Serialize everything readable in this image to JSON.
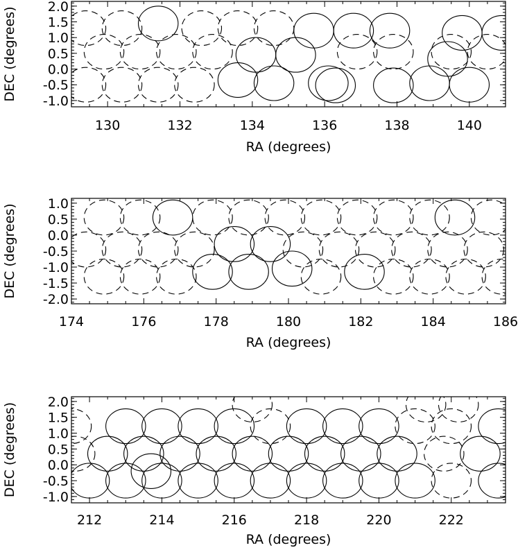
{
  "chart_data": [
    {
      "type": "scatter",
      "marker": "circle",
      "xlabel": "RA (degrees)",
      "ylabel": "DEC (degrees)",
      "xlim": [
        129.0,
        141.0
      ],
      "ylim": [
        -1.2,
        2.15
      ],
      "xticks": [
        130,
        132,
        134,
        136,
        138,
        140
      ],
      "yticks": [
        -1.0,
        -0.5,
        0.0,
        0.5,
        1.0,
        1.5,
        2.0
      ],
      "xtick_labels": [
        "130",
        "132",
        "134",
        "136",
        "138",
        "140"
      ],
      "ytick_labels": [
        "-1.0",
        "-0.5",
        "0.0",
        "0.5",
        "1.0",
        "1.5",
        "2.0"
      ],
      "radius_deg": 0.55,
      "series": [
        {
          "style": "solid",
          "points": [
            [
              131.4,
              1.45
            ],
            [
              135.7,
              1.22
            ],
            [
              136.8,
              1.22
            ],
            [
              137.8,
              1.22
            ],
            [
              139.8,
              1.15
            ],
            [
              140.9,
              1.15
            ],
            [
              134.1,
              0.45
            ],
            [
              135.2,
              0.45
            ],
            [
              139.4,
              0.32
            ],
            [
              133.6,
              -0.35
            ],
            [
              134.6,
              -0.45
            ],
            [
              136.3,
              -0.52
            ],
            [
              136.1,
              -0.45
            ],
            [
              137.9,
              -0.52
            ],
            [
              138.9,
              -0.45
            ],
            [
              140.0,
              -0.5
            ]
          ]
        },
        {
          "style": "dashed",
          "points": [
            [
              129.4,
              1.3
            ],
            [
              130.4,
              1.3
            ],
            [
              132.6,
              1.3
            ],
            [
              133.6,
              1.3
            ],
            [
              134.6,
              1.3
            ],
            [
              129.9,
              0.55
            ],
            [
              130.9,
              0.55
            ],
            [
              131.9,
              0.55
            ],
            [
              132.9,
              0.55
            ],
            [
              129.4,
              -0.5
            ],
            [
              130.4,
              -0.5
            ],
            [
              131.4,
              -0.5
            ],
            [
              132.4,
              -0.5
            ],
            [
              139.5,
              0.55
            ],
            [
              140.5,
              0.55
            ],
            [
              136.9,
              0.55
            ],
            [
              137.9,
              0.55
            ]
          ]
        }
      ]
    },
    {
      "type": "scatter",
      "marker": "circle",
      "xlabel": "RA (degrees)",
      "ylabel": "DEC (degrees)",
      "xlim": [
        174.0,
        186.0
      ],
      "ylim": [
        -2.15,
        1.15
      ],
      "xticks": [
        174,
        176,
        178,
        180,
        182,
        184,
        186
      ],
      "yticks": [
        -2.0,
        -1.5,
        -1.0,
        -0.5,
        0.0,
        0.5,
        1.0
      ],
      "xtick_labels": [
        "174",
        "176",
        "178",
        "180",
        "182",
        "184",
        "186"
      ],
      "ytick_labels": [
        "-2.0",
        "-1.5",
        "-1.0",
        "-0.5",
        "0.0",
        "0.5",
        "1.0"
      ],
      "radius_deg": 0.55,
      "series": [
        {
          "style": "solid",
          "points": [
            [
              176.8,
              0.55
            ],
            [
              184.6,
              0.55
            ],
            [
              178.5,
              -0.28
            ],
            [
              179.5,
              -0.28
            ],
            [
              177.9,
              -1.15
            ],
            [
              178.9,
              -1.15
            ],
            [
              180.1,
              -1.05
            ],
            [
              182.1,
              -1.15
            ]
          ]
        },
        {
          "style": "dashed",
          "points": [
            [
              174.9,
              0.55
            ],
            [
              175.9,
              0.55
            ],
            [
              177.9,
              0.55
            ],
            [
              178.9,
              0.55
            ],
            [
              179.9,
              0.55
            ],
            [
              180.9,
              0.55
            ],
            [
              181.9,
              0.55
            ],
            [
              182.9,
              0.55
            ],
            [
              183.9,
              0.55
            ],
            [
              185.6,
              0.55
            ],
            [
              174.4,
              -0.45
            ],
            [
              175.4,
              -0.45
            ],
            [
              176.4,
              -0.45
            ],
            [
              177.4,
              -0.45
            ],
            [
              180.4,
              -0.45
            ],
            [
              181.4,
              -0.45
            ],
            [
              182.4,
              -0.45
            ],
            [
              183.4,
              -0.45
            ],
            [
              184.4,
              -0.45
            ],
            [
              185.4,
              -0.45
            ],
            [
              174.9,
              -1.3
            ],
            [
              175.9,
              -1.3
            ],
            [
              176.9,
              -1.3
            ],
            [
              180.9,
              -1.3
            ],
            [
              182.9,
              -1.3
            ],
            [
              183.9,
              -1.3
            ],
            [
              184.9,
              -1.3
            ],
            [
              185.9,
              -1.3
            ]
          ]
        }
      ]
    },
    {
      "type": "scatter",
      "marker": "circle",
      "xlabel": "RA (degrees)",
      "ylabel": "DEC (degrees)",
      "xlim": [
        211.5,
        223.5
      ],
      "ylim": [
        -1.2,
        2.15
      ],
      "xticks": [
        212,
        214,
        216,
        218,
        220,
        222
      ],
      "yticks": [
        -1.0,
        -0.5,
        0.0,
        0.5,
        1.0,
        1.5,
        2.0
      ],
      "xtick_labels": [
        "212",
        "214",
        "216",
        "218",
        "220",
        "222"
      ],
      "ytick_labels": [
        "-1.0",
        "-0.5",
        "0.0",
        "0.5",
        "1.0",
        "1.5",
        "2.0"
      ],
      "radius_deg": 0.55,
      "series": [
        {
          "style": "solid",
          "points": [
            [
              213.0,
              1.22
            ],
            [
              214.0,
              1.22
            ],
            [
              215.0,
              1.22
            ],
            [
              216.0,
              1.22
            ],
            [
              218.0,
              1.22
            ],
            [
              219.0,
              1.22
            ],
            [
              220.0,
              1.22
            ],
            [
              223.3,
              1.22
            ],
            [
              212.5,
              0.35
            ],
            [
              213.5,
              0.35
            ],
            [
              214.5,
              0.35
            ],
            [
              215.5,
              0.35
            ],
            [
              216.5,
              0.35
            ],
            [
              217.5,
              0.35
            ],
            [
              218.5,
              0.35
            ],
            [
              219.5,
              0.35
            ],
            [
              220.5,
              0.35
            ],
            [
              222.8,
              0.35
            ],
            [
              213.7,
              -0.2
            ],
            [
              212.0,
              -0.5
            ],
            [
              213.0,
              -0.5
            ],
            [
              214.0,
              -0.5
            ],
            [
              215.0,
              -0.5
            ],
            [
              216.0,
              -0.5
            ],
            [
              217.0,
              -0.5
            ],
            [
              218.0,
              -0.5
            ],
            [
              219.0,
              -0.5
            ],
            [
              220.0,
              -0.5
            ],
            [
              221.0,
              -0.5
            ],
            [
              223.3,
              -0.5
            ]
          ]
        },
        {
          "style": "dashed",
          "points": [
            [
              211.5,
              1.22
            ],
            [
              217.0,
              1.22
            ],
            [
              221.0,
              1.22
            ],
            [
              222.0,
              1.22
            ],
            [
              216.5,
              1.9
            ],
            [
              221.3,
              1.9
            ],
            [
              222.2,
              1.9
            ],
            [
              221.8,
              0.35
            ],
            [
              211.6,
              0.35
            ],
            [
              222.0,
              -0.5
            ]
          ]
        }
      ]
    }
  ]
}
